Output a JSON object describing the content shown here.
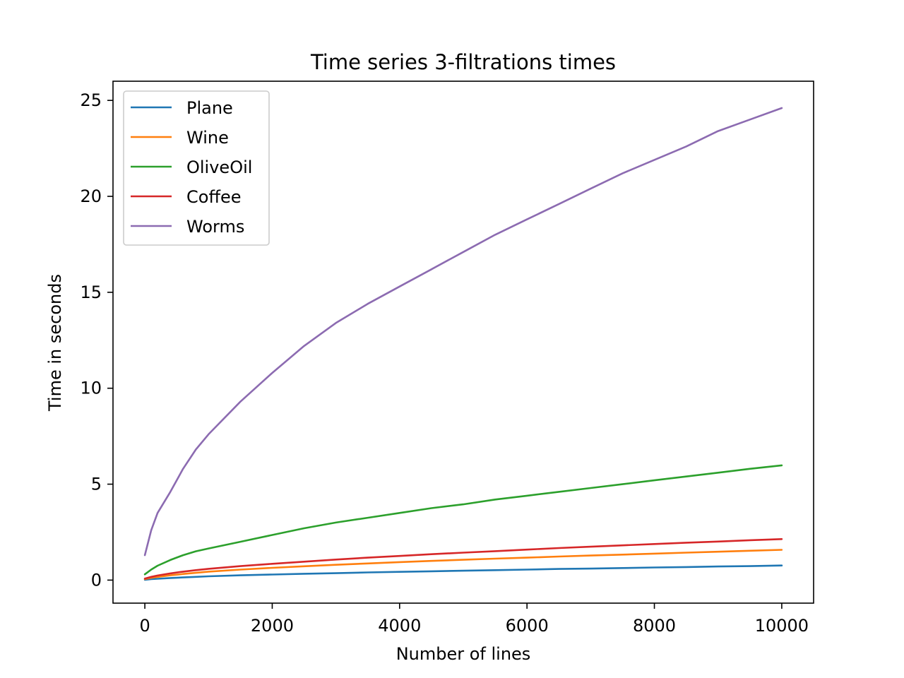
{
  "chart_data": {
    "type": "line",
    "title": "Time series 3-filtrations times",
    "xlabel": "Number of lines",
    "ylabel": "Time in seconds",
    "xlim": [
      -500,
      10500
    ],
    "ylim": [
      -1.2,
      26.0
    ],
    "xticks": [
      0,
      2000,
      4000,
      6000,
      8000,
      10000
    ],
    "yticks": [
      0,
      5,
      10,
      15,
      20,
      25
    ],
    "grid": false,
    "legend_position": "top-left",
    "x": [
      0,
      100,
      200,
      400,
      600,
      800,
      1000,
      1500,
      2000,
      2500,
      3000,
      3500,
      4000,
      4500,
      5000,
      5500,
      6000,
      6500,
      7000,
      7500,
      8000,
      8500,
      9000,
      9500,
      10000
    ],
    "series": [
      {
        "name": "Plane",
        "color": "#1f77b4",
        "values": [
          0.02,
          0.05,
          0.07,
          0.11,
          0.14,
          0.17,
          0.2,
          0.25,
          0.29,
          0.33,
          0.36,
          0.4,
          0.43,
          0.46,
          0.49,
          0.52,
          0.55,
          0.58,
          0.6,
          0.63,
          0.66,
          0.68,
          0.71,
          0.73,
          0.76
        ]
      },
      {
        "name": "Wine",
        "color": "#ff7f0e",
        "values": [
          0.05,
          0.12,
          0.17,
          0.25,
          0.32,
          0.38,
          0.44,
          0.55,
          0.64,
          0.72,
          0.8,
          0.87,
          0.94,
          1.0,
          1.06,
          1.12,
          1.17,
          1.23,
          1.28,
          1.33,
          1.38,
          1.43,
          1.48,
          1.53,
          1.58
        ]
      },
      {
        "name": "OliveOil",
        "color": "#2ca02c",
        "values": [
          0.3,
          0.55,
          0.75,
          1.05,
          1.3,
          1.5,
          1.65,
          2.0,
          2.35,
          2.7,
          3.0,
          3.25,
          3.5,
          3.75,
          3.95,
          4.2,
          4.4,
          4.6,
          4.8,
          5.0,
          5.2,
          5.4,
          5.6,
          5.8,
          5.98
        ]
      },
      {
        "name": "Coffee",
        "color": "#d62728",
        "values": [
          0.08,
          0.17,
          0.24,
          0.35,
          0.44,
          0.52,
          0.59,
          0.73,
          0.85,
          0.96,
          1.07,
          1.17,
          1.26,
          1.35,
          1.43,
          1.51,
          1.59,
          1.67,
          1.74,
          1.81,
          1.88,
          1.95,
          2.01,
          2.08,
          2.14
        ]
      },
      {
        "name": "Worms",
        "color": "#8c6bb1",
        "values": [
          1.3,
          2.6,
          3.5,
          4.6,
          5.8,
          6.8,
          7.6,
          9.3,
          10.8,
          12.2,
          13.4,
          14.4,
          15.3,
          16.2,
          17.1,
          18.0,
          18.8,
          19.6,
          20.4,
          21.2,
          21.9,
          22.6,
          23.4,
          24.0,
          24.6
        ]
      }
    ]
  }
}
